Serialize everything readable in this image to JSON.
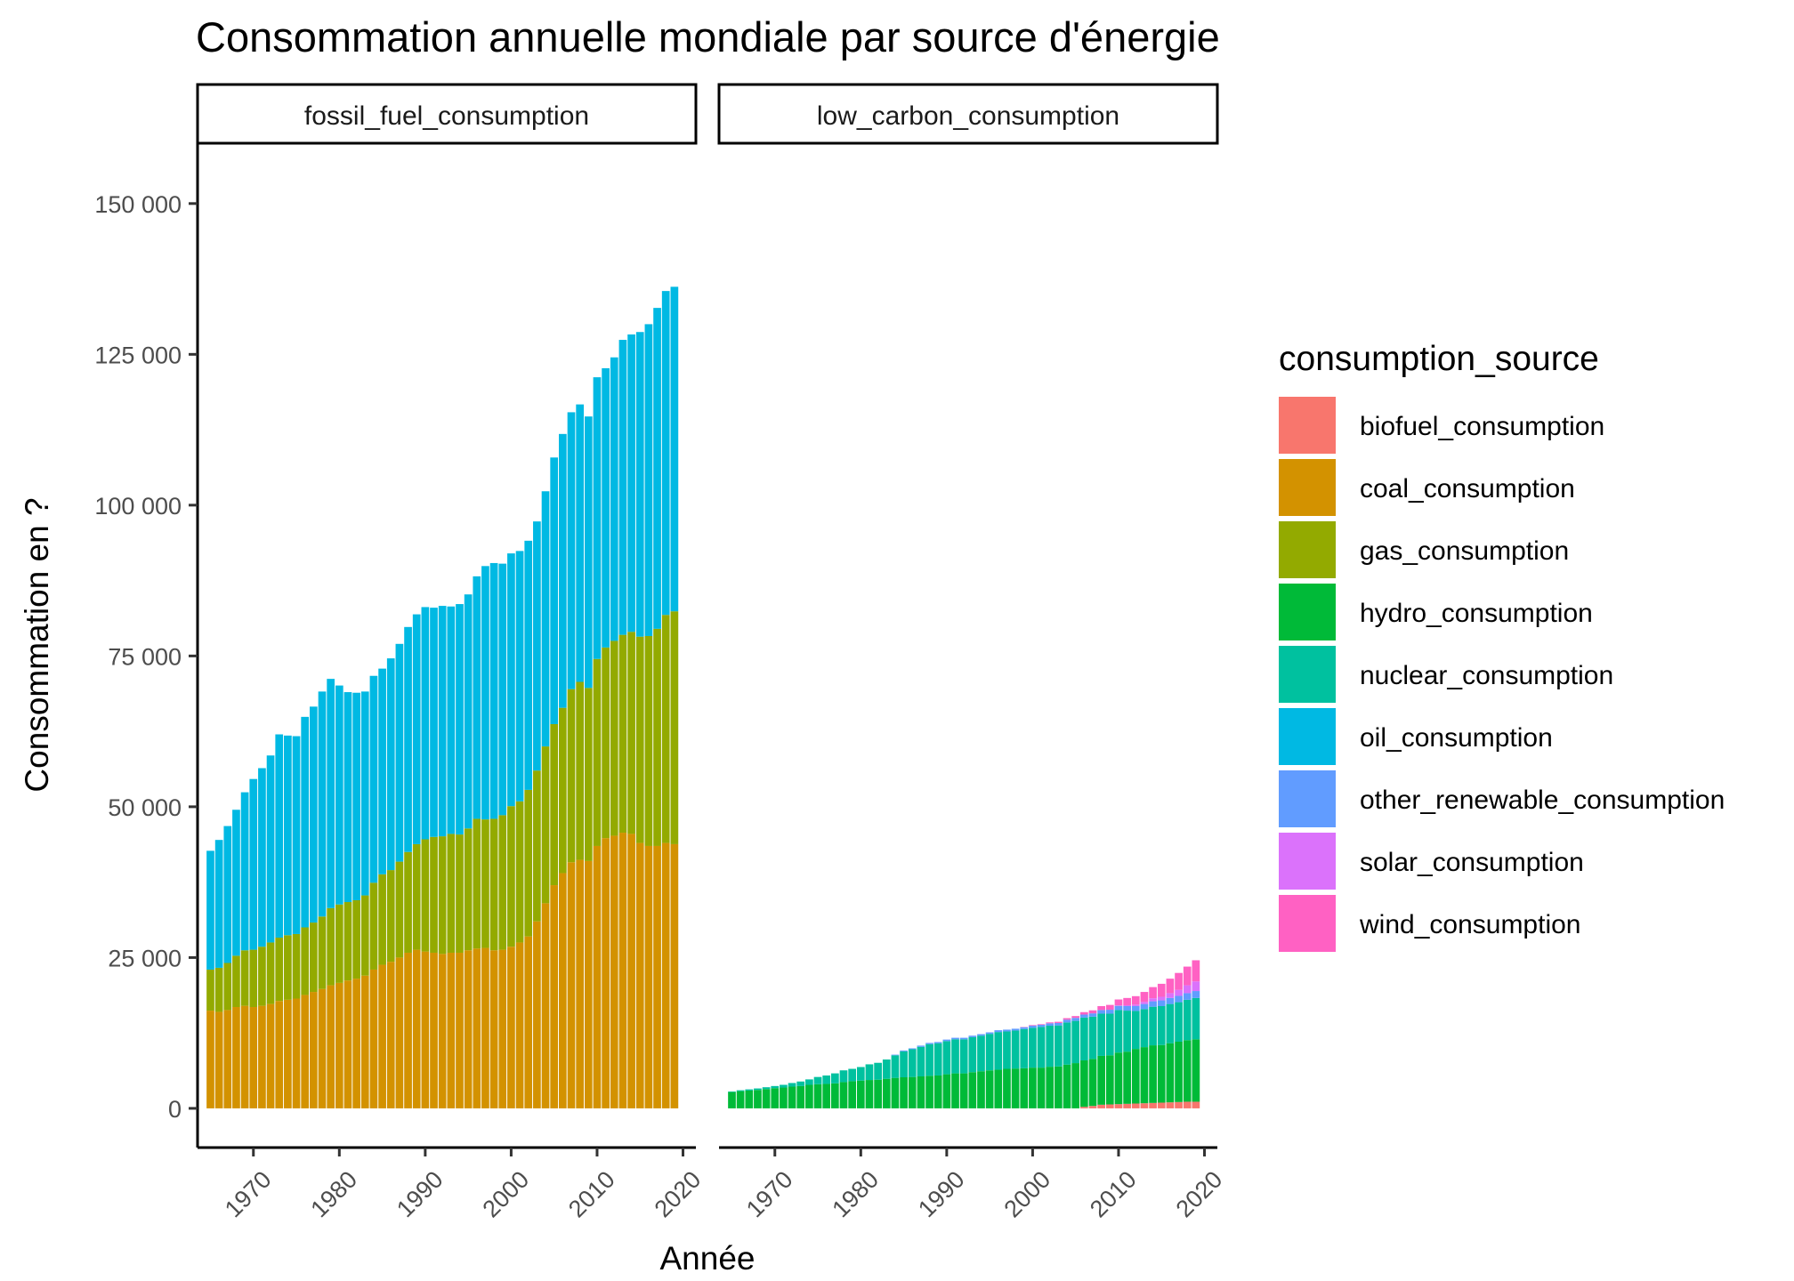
{
  "chart_data": {
    "type": "bar",
    "stacked": true,
    "title": "Consommation annuelle mondiale par source d'énergie",
    "xlabel": "Année",
    "ylabel": "Consommation en ?",
    "ylim": [
      -6500,
      160000
    ],
    "y_ticks": [
      0,
      25000,
      50000,
      75000,
      100000,
      125000,
      150000
    ],
    "y_tick_labels": [
      "0",
      "25 000",
      "50 000",
      "75 000",
      "100 000",
      "125 000",
      "150 000"
    ],
    "xlim": [
      1963.5,
      2021.5
    ],
    "x_ticks": [
      1970,
      1980,
      1990,
      2000,
      2010,
      2020
    ],
    "x_tick_labels": [
      "1970",
      "1980",
      "1990",
      "2000",
      "2010",
      "2020"
    ],
    "legend_title": "consumption_source",
    "legend_position": "right",
    "grid": false,
    "sources": [
      {
        "key": "biofuel",
        "name": "biofuel_consumption",
        "color": "#F8766D"
      },
      {
        "key": "coal",
        "name": "coal_consumption",
        "color": "#D39200"
      },
      {
        "key": "gas",
        "name": "gas_consumption",
        "color": "#93AA00"
      },
      {
        "key": "hydro",
        "name": "hydro_consumption",
        "color": "#00BA38"
      },
      {
        "key": "nuclear",
        "name": "nuclear_consumption",
        "color": "#00C19F"
      },
      {
        "key": "oil",
        "name": "oil_consumption",
        "color": "#00B9E3"
      },
      {
        "key": "other_renewable",
        "name": "other_renewable_consumption",
        "color": "#619CFF"
      },
      {
        "key": "solar",
        "name": "solar_consumption",
        "color": "#DB72FB"
      },
      {
        "key": "wind",
        "name": "wind_consumption",
        "color": "#FF61C3"
      }
    ],
    "years": [
      1965,
      1966,
      1967,
      1968,
      1969,
      1970,
      1971,
      1972,
      1973,
      1974,
      1975,
      1976,
      1977,
      1978,
      1979,
      1980,
      1981,
      1982,
      1983,
      1984,
      1985,
      1986,
      1987,
      1988,
      1989,
      1990,
      1991,
      1992,
      1993,
      1994,
      1995,
      1996,
      1997,
      1998,
      1999,
      2000,
      2001,
      2002,
      2003,
      2004,
      2005,
      2006,
      2007,
      2008,
      2009,
      2010,
      2011,
      2012,
      2013,
      2014,
      2015,
      2016,
      2017,
      2018,
      2019
    ],
    "panels": [
      {
        "name": "fossil_fuel_consumption",
        "stack_order": [
          "coal",
          "gas",
          "oil"
        ],
        "series": {
          "coal": [
            16200,
            16000,
            16300,
            16800,
            17000,
            16800,
            17000,
            17300,
            17800,
            18000,
            18200,
            18800,
            19300,
            19800,
            20400,
            20800,
            21200,
            21500,
            22000,
            23000,
            23800,
            24300,
            25000,
            25800,
            26300,
            26000,
            25800,
            25600,
            25800,
            25800,
            26200,
            26500,
            26600,
            26200,
            26300,
            26800,
            27500,
            28500,
            31000,
            34000,
            37000,
            39000,
            40800,
            41200,
            41000,
            43500,
            44800,
            45200,
            45700,
            45500,
            44000,
            43500,
            43500,
            44000,
            43800
          ],
          "gas": [
            6800,
            7300,
            7800,
            8500,
            9200,
            9500,
            9800,
            10200,
            10500,
            10700,
            10700,
            11200,
            11500,
            12000,
            12800,
            13000,
            13000,
            13000,
            13300,
            14400,
            15000,
            15200,
            15900,
            16700,
            17500,
            18600,
            19200,
            19500,
            19700,
            19600,
            20200,
            21500,
            21300,
            21800,
            22300,
            23300,
            23400,
            24300,
            25000,
            26000,
            26700,
            27400,
            28700,
            29500,
            28700,
            31000,
            31600,
            32300,
            32800,
            33500,
            34200,
            34800,
            36000,
            37800,
            38600
          ],
          "oil": [
            19700,
            21200,
            22700,
            24200,
            26200,
            28300,
            29600,
            31000,
            33700,
            33100,
            32800,
            34900,
            35800,
            37300,
            38000,
            36300,
            34800,
            34400,
            33800,
            34300,
            34100,
            35100,
            36100,
            37300,
            38100,
            38500,
            38000,
            38200,
            37700,
            38200,
            38800,
            40200,
            42000,
            42400,
            41700,
            41900,
            41500,
            41300,
            41300,
            42300,
            44200,
            45400,
            45900,
            46000,
            45000,
            46700,
            46300,
            47000,
            48900,
            49300,
            50500,
            51700,
            53200,
            53700,
            53800
          ]
        }
      },
      {
        "name": "low_carbon_consumption",
        "stack_order": [
          "biofuel",
          "hydro",
          "nuclear",
          "other_renewable",
          "solar",
          "wind"
        ],
        "series": {
          "biofuel": [
            0,
            0,
            0,
            0,
            0,
            0,
            0,
            0,
            0,
            0,
            0,
            0,
            0,
            0,
            0,
            0,
            0,
            0,
            0,
            0,
            0,
            0,
            0,
            0,
            0,
            0,
            0,
            0,
            0,
            0,
            0,
            0,
            0,
            0,
            0,
            0,
            0,
            0,
            0,
            0,
            0,
            250,
            400,
            600,
            650,
            700,
            750,
            800,
            850,
            900,
            950,
            1000,
            1050,
            1100,
            1100
          ],
          "hydro": [
            2700,
            2850,
            2950,
            3050,
            3200,
            3350,
            3450,
            3600,
            3700,
            3900,
            4000,
            4050,
            4150,
            4350,
            4500,
            4600,
            4700,
            4750,
            4900,
            5050,
            5150,
            5200,
            5300,
            5400,
            5450,
            5650,
            5800,
            5800,
            6000,
            6150,
            6300,
            6400,
            6550,
            6600,
            6650,
            6750,
            6750,
            6900,
            6950,
            7250,
            7500,
            7700,
            7800,
            8100,
            8150,
            8550,
            8650,
            9050,
            9300,
            9550,
            9550,
            9800,
            10000,
            10200,
            10350
          ],
          "nuclear": [
            100,
            150,
            200,
            250,
            300,
            350,
            450,
            600,
            750,
            900,
            1200,
            1400,
            1650,
            1950,
            2050,
            2250,
            2600,
            2800,
            3200,
            3750,
            4300,
            4600,
            4900,
            5250,
            5350,
            5500,
            5650,
            5650,
            5800,
            5900,
            6050,
            6250,
            6200,
            6300,
            6500,
            6600,
            6750,
            6800,
            6800,
            7000,
            7000,
            7100,
            7000,
            7000,
            6900,
            7050,
            6800,
            6300,
            6300,
            6400,
            6450,
            6500,
            6550,
            6700,
            6850
          ],
          "other_renewable": [
            0,
            0,
            0,
            0,
            0,
            0,
            0,
            0,
            0,
            0,
            0,
            0,
            0,
            0,
            0,
            0,
            0,
            0,
            0,
            100,
            150,
            150,
            200,
            200,
            200,
            250,
            250,
            250,
            250,
            250,
            250,
            300,
            300,
            300,
            300,
            350,
            350,
            400,
            400,
            450,
            500,
            500,
            550,
            600,
            650,
            700,
            750,
            800,
            850,
            900,
            950,
            1000,
            1050,
            1100,
            1150
          ],
          "solar": [
            0,
            0,
            0,
            0,
            0,
            0,
            0,
            0,
            0,
            0,
            0,
            0,
            0,
            0,
            0,
            0,
            0,
            0,
            0,
            0,
            0,
            0,
            0,
            0,
            0,
            0,
            0,
            0,
            0,
            0,
            0,
            0,
            0,
            0,
            0,
            0,
            0,
            0,
            0,
            0,
            0,
            0,
            0,
            0,
            0,
            50,
            150,
            250,
            350,
            500,
            600,
            800,
            1000,
            1300,
            1600
          ],
          "wind": [
            0,
            0,
            0,
            0,
            0,
            0,
            0,
            0,
            0,
            0,
            0,
            0,
            0,
            0,
            0,
            0,
            0,
            0,
            0,
            0,
            0,
            0,
            0,
            0,
            0,
            0,
            0,
            0,
            0,
            0,
            0,
            0,
            0,
            0,
            50,
            100,
            100,
            150,
            200,
            250,
            300,
            400,
            500,
            650,
            800,
            1000,
            1200,
            1400,
            1650,
            1850,
            2150,
            2400,
            2800,
            3100,
            3500
          ]
        }
      }
    ]
  }
}
